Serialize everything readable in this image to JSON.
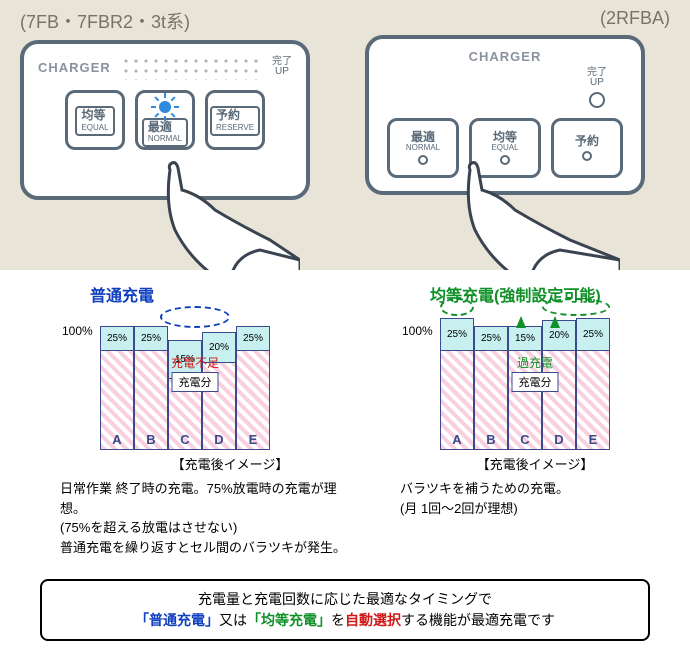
{
  "panels": {
    "left_label": "(7FB・7FBR2・3t系)",
    "right_label": "(2RFBA)",
    "charger_title": "CHARGER",
    "done_jp": "完了",
    "done_en": "UP",
    "buttons": {
      "equal": {
        "jp": "均等",
        "en": "EQUAL"
      },
      "normal": {
        "jp": "最適",
        "en": "NORMAL"
      },
      "reserve": {
        "jp": "予約",
        "en": "RESERVE"
      },
      "reserve_short": "予約"
    }
  },
  "chart_left": {
    "title": "普通充電",
    "title_color": "#1040c0",
    "y100": "100%",
    "bars": [
      {
        "pct": "25%",
        "top_h": 24,
        "letter": "A"
      },
      {
        "pct": "25%",
        "top_h": 24,
        "letter": "B"
      },
      {
        "pct": "15%",
        "top_h": 38,
        "letter": "C",
        "offset": -14
      },
      {
        "pct": "20%",
        "top_h": 30,
        "letter": "D",
        "offset": -6
      },
      {
        "pct": "25%",
        "top_h": 24,
        "letter": "E"
      }
    ],
    "shortage": "充電不足",
    "shortage_color": "#d01818",
    "charged": "充電分",
    "caption": "【充電後イメージ】",
    "desc1": "日常作業 終了時の充電。75%放電時の充電が理想。",
    "desc2": "(75%を超える放電はさせない)",
    "desc3": "普通充電を繰り返すとセル間のバラツキが発生。",
    "oval_color": "#1040c0"
  },
  "chart_right": {
    "title": "均等充電(強制設定可能)",
    "title_color": "#109028",
    "y100": "100%",
    "bars": [
      {
        "pct": "25%",
        "top_h": 24,
        "letter": "A"
      },
      {
        "pct": "25%",
        "top_h": 24,
        "letter": "B"
      },
      {
        "pct": "15%",
        "top_h": 24,
        "letter": "C"
      },
      {
        "pct": "20%",
        "top_h": 24,
        "letter": "D"
      },
      {
        "pct": "25%",
        "top_h": 24,
        "letter": "E"
      }
    ],
    "overcharge": "過充電",
    "overcharge_color": "#109028",
    "charged": "充電分",
    "caption": "【充電後イメージ】",
    "desc1": "バラツキを補うための充電。",
    "desc2": "(月 1回～2回が理想)",
    "oval_color": "#109028",
    "arrow_color": "#109028"
  },
  "footer": {
    "line1": "充電量と充電回数に応じた最適なタイミングで",
    "normal_q": "「普通充電」",
    "or": "又は",
    "equal_q": "「均等充電」",
    "wo": "を",
    "auto": "自動選択",
    "rest": "する機能が最適充電です",
    "colors": {
      "normal": "#1040c0",
      "equal": "#109028",
      "auto": "#d01818"
    }
  }
}
